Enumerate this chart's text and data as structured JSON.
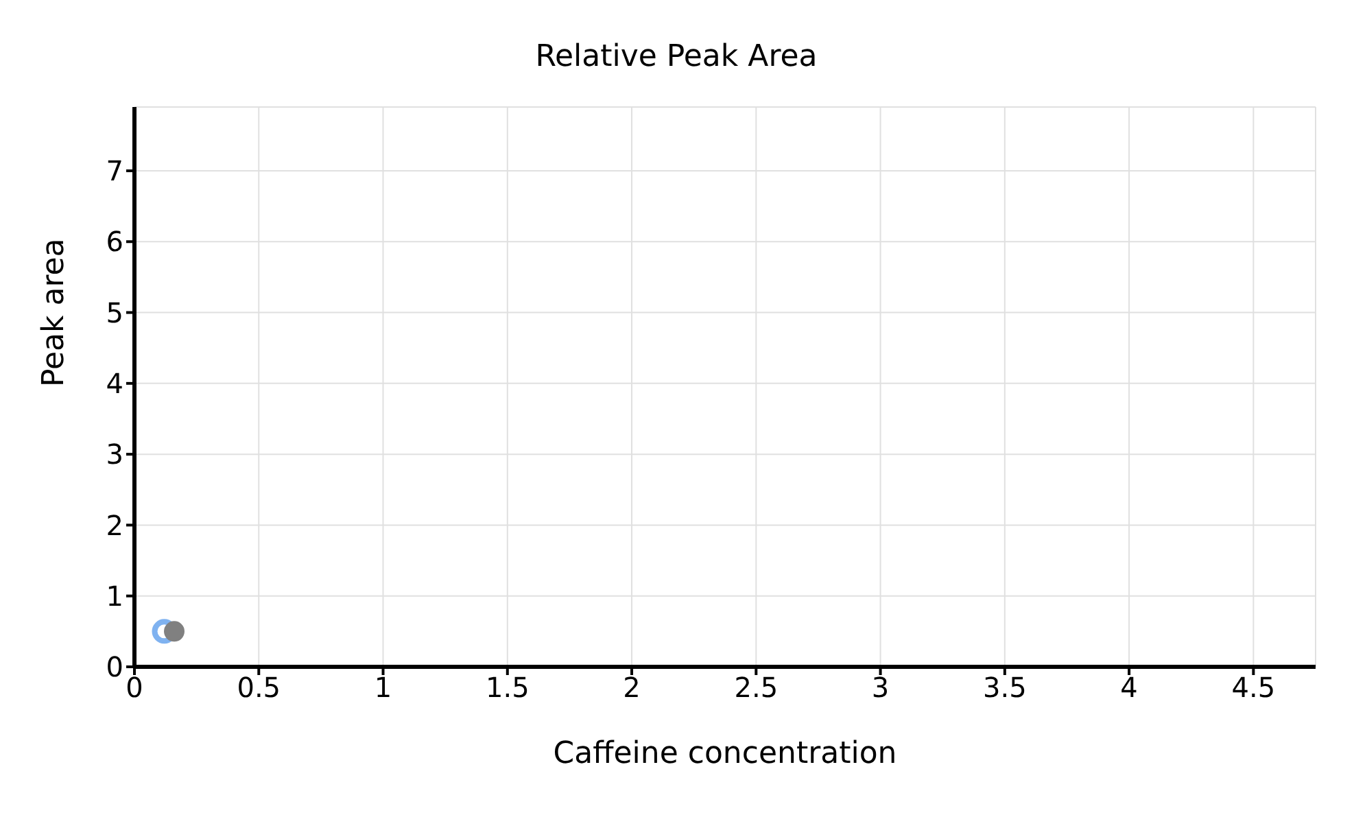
{
  "chart_data": {
    "type": "scatter",
    "title": "Relative Peak Area",
    "xlabel": "Caffeine concentration",
    "ylabel": "Peak area",
    "series": [
      {
        "color": "#7fb2f0",
        "x": [
          0.12
        ],
        "values": [
          0.5
        ]
      },
      {
        "color": "#808080",
        "x": [
          0.16
        ],
        "values": [
          0.5
        ]
      }
    ],
    "xlim": [
      0,
      4.75
    ],
    "xticks": [
      0,
      0.5,
      1,
      1.5,
      2,
      2.5,
      3,
      3.5,
      4,
      4.5
    ],
    "ylim": [
      0,
      7.9
    ],
    "yticks": [
      0,
      1,
      2,
      3,
      4,
      5,
      6,
      7
    ],
    "grid": true,
    "marker": "circle"
  }
}
